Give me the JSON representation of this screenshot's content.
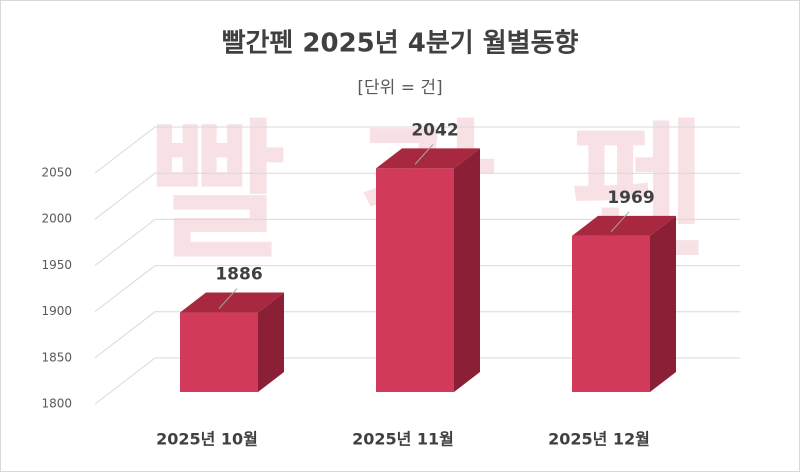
{
  "chart_data": {
    "type": "bar3d",
    "title": "빨간펜 2025년 4분기 월별동향",
    "subtitle": "[단위 = 건]",
    "watermark": "빨간펜",
    "categories": [
      "2025년 10월",
      "2025년 11월",
      "2025년 12월"
    ],
    "values": [
      1886,
      2042,
      1969
    ],
    "color": "#d23a5c",
    "ylim": [
      1800,
      2050
    ],
    "yticks": [
      1800,
      1850,
      1900,
      1950,
      2000,
      2050
    ],
    "grid": true
  }
}
